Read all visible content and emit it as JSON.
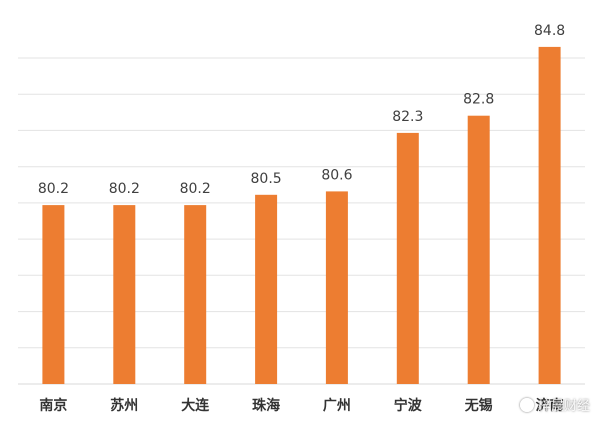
{
  "chart_data": {
    "type": "bar",
    "categories": [
      "南京",
      "苏州",
      "大连",
      "珠海",
      "广州",
      "宁波",
      "无锡",
      "济南"
    ],
    "values": [
      80.2,
      80.2,
      80.2,
      80.5,
      80.6,
      82.3,
      82.8,
      84.8
    ],
    "value_labels": [
      "80.2",
      "80.2",
      "80.2",
      "80.5",
      "80.6",
      "82.3",
      "82.8",
      "84.8"
    ],
    "title": "",
    "xlabel": "",
    "ylabel": "",
    "ylim": [
      75,
      85
    ],
    "grid": true,
    "legend": "none",
    "colors": {
      "bar": "#ED7D31",
      "grid": "#E3E3E3",
      "text": "#404040"
    }
  },
  "watermark": {
    "text": "梓晨财经"
  }
}
